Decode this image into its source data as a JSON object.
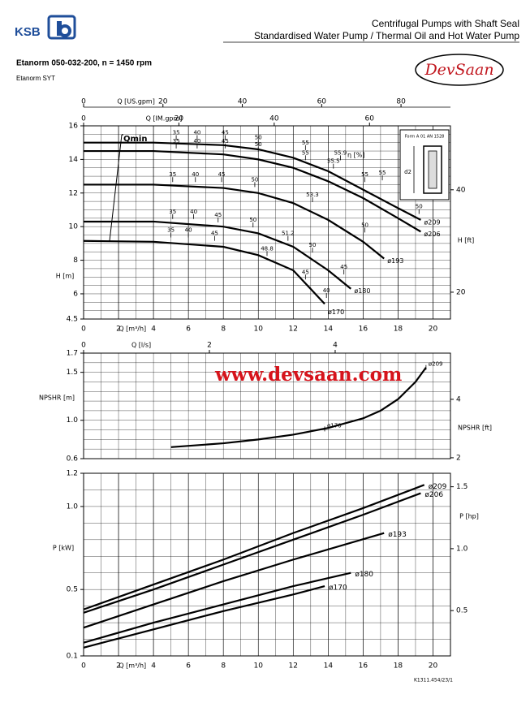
{
  "header": {
    "brand": "KSB",
    "title": "Centrifugal Pumps with Shaft Seal",
    "subtitle": "Standardised Water Pump / Thermal Oil and Hot Water Pump",
    "model": "Etanorm 050-032-200, n = 1450 rpm",
    "series_name": "Etanorm SYT",
    "partner_logo": "DevSaan",
    "watermark": "www.devsaan.com",
    "footer": "K1311.454/23/1"
  },
  "inset": {
    "form": "Form A 01 AN 1528",
    "label": "d2"
  },
  "chart_data": [
    {
      "type": "line",
      "xlabel": "Q [m³/h]",
      "ylabel": "H [m]",
      "xlim": [
        0,
        21
      ],
      "xticks": [
        0,
        2,
        4,
        6,
        8,
        10,
        12,
        14,
        16,
        18,
        20
      ],
      "ylim": [
        4.5,
        16
      ],
      "yticks": [
        4.5,
        6,
        8,
        10,
        12,
        14,
        16
      ],
      "y2label": "H [ft]",
      "y2lim": [
        14.76,
        52.49
      ],
      "y2ticks": [
        20,
        40
      ],
      "top_axes": [
        {
          "label": "Q [US.gpm]",
          "lim": [
            0,
            92.46
          ],
          "ticks": [
            0,
            20,
            40,
            60,
            80
          ]
        },
        {
          "label": "Q [IM.gpm]",
          "lim": [
            0,
            76.99
          ],
          "ticks": [
            0,
            20,
            40,
            60
          ]
        }
      ],
      "grid": true,
      "min_flow_label": "Qmin",
      "efficiency_label": "η [%]",
      "series": [
        {
          "name": "ø209",
          "color": "#000000",
          "x": [
            0,
            4,
            8,
            10,
            12,
            14,
            16,
            18,
            19.3
          ],
          "values": [
            15.0,
            15.0,
            14.85,
            14.6,
            14.1,
            13.3,
            12.2,
            11.1,
            10.4
          ]
        },
        {
          "name": "ø206",
          "color": "#000000",
          "x": [
            0,
            4,
            8,
            10,
            12,
            14,
            16,
            18,
            19.3
          ],
          "values": [
            14.5,
            14.5,
            14.3,
            14.0,
            13.5,
            12.7,
            11.7,
            10.5,
            9.7
          ]
        },
        {
          "name": "ø193",
          "color": "#000000",
          "x": [
            0,
            4,
            8,
            10,
            12,
            14,
            16,
            17.2
          ],
          "values": [
            12.5,
            12.5,
            12.3,
            12.0,
            11.4,
            10.4,
            9.1,
            8.1
          ]
        },
        {
          "name": "ø180",
          "color": "#000000",
          "x": [
            0,
            4,
            8,
            10,
            12,
            14,
            15.3
          ],
          "values": [
            10.3,
            10.3,
            10.0,
            9.6,
            8.8,
            7.4,
            6.3
          ]
        },
        {
          "name": "ø170",
          "color": "#000000",
          "x": [
            0,
            4,
            8,
            10,
            12,
            13.8
          ],
          "values": [
            9.15,
            9.1,
            8.8,
            8.3,
            7.4,
            5.4
          ]
        }
      ],
      "annotations": [
        {
          "text": "35",
          "x": 5.3,
          "y": 15.3
        },
        {
          "text": "40",
          "x": 6.5,
          "y": 15.3
        },
        {
          "text": "45",
          "x": 8.1,
          "y": 15.3
        },
        {
          "text": "50",
          "x": 10.0,
          "y": 15.0
        },
        {
          "text": "55",
          "x": 12.7,
          "y": 14.7
        },
        {
          "text": "55.9",
          "x": 14.7,
          "y": 14.1
        },
        {
          "text": "55",
          "x": 17.1,
          "y": 12.9
        },
        {
          "text": "50",
          "x": 19.2,
          "y": 10.9
        },
        {
          "text": "35",
          "x": 5.3,
          "y": 14.8
        },
        {
          "text": "40",
          "x": 6.5,
          "y": 14.8
        },
        {
          "text": "45",
          "x": 8.1,
          "y": 14.8
        },
        {
          "text": "50",
          "x": 10.0,
          "y": 14.6
        },
        {
          "text": "55",
          "x": 12.7,
          "y": 14.1
        },
        {
          "text": "55.5",
          "x": 14.3,
          "y": 13.6
        },
        {
          "text": "55",
          "x": 16.1,
          "y": 12.8
        },
        {
          "text": "35",
          "x": 5.1,
          "y": 12.8
        },
        {
          "text": "40",
          "x": 6.4,
          "y": 12.8
        },
        {
          "text": "45",
          "x": 7.9,
          "y": 12.8
        },
        {
          "text": "50",
          "x": 9.8,
          "y": 12.5
        },
        {
          "text": "53.3",
          "x": 13.1,
          "y": 11.6
        },
        {
          "text": "50",
          "x": 16.1,
          "y": 9.8
        },
        {
          "text": "35",
          "x": 5.1,
          "y": 10.6
        },
        {
          "text": "40",
          "x": 6.3,
          "y": 10.6
        },
        {
          "text": "45",
          "x": 7.7,
          "y": 10.4
        },
        {
          "text": "50",
          "x": 9.7,
          "y": 10.1
        },
        {
          "text": "51.2",
          "x": 11.7,
          "y": 9.3
        },
        {
          "text": "50",
          "x": 13.1,
          "y": 8.6
        },
        {
          "text": "45",
          "x": 14.9,
          "y": 7.3
        },
        {
          "text": "35",
          "x": 5.0,
          "y": 9.5
        },
        {
          "text": "40",
          "x": 6.0,
          "y": 9.5
        },
        {
          "text": "45",
          "x": 7.5,
          "y": 9.3
        },
        {
          "text": "48.8",
          "x": 10.5,
          "y": 8.4
        },
        {
          "text": "45",
          "x": 12.7,
          "y": 7.0
        },
        {
          "text": "40",
          "x": 13.9,
          "y": 5.9
        }
      ]
    },
    {
      "type": "line",
      "ylabel": "NPSHR [m]",
      "xlim": [
        0,
        21
      ],
      "ylim": [
        0.6,
        1.7
      ],
      "yticks": [
        0.6,
        {
          "value": 1,
          "label": "1.0"
        },
        1.5,
        1.7
      ],
      "y2label": "NPSHR [ft]",
      "y2lim": [
        1.97,
        5.58
      ],
      "y2ticks": [
        2,
        4
      ],
      "top_axes": [
        {
          "label": "Q [l/s]",
          "lim": [
            0,
            5.833
          ],
          "ticks": [
            0,
            2,
            4
          ]
        }
      ],
      "grid": true,
      "series": [
        {
          "name": "NPSHR",
          "color": "#000000",
          "x": [
            5,
            8,
            10,
            12,
            14,
            16,
            17,
            18,
            19,
            19.6
          ],
          "values": [
            0.72,
            0.76,
            0.8,
            0.85,
            0.92,
            1.02,
            1.1,
            1.22,
            1.4,
            1.55
          ]
        }
      ],
      "annotations": [
        {
          "text": "ø209",
          "x": 19.6,
          "y": 1.55
        },
        {
          "text": "ø170",
          "x": 13.8,
          "y": 0.91
        }
      ]
    },
    {
      "type": "line",
      "xlabel": "Q [m³/h]",
      "ylabel": "P [kW]",
      "xlim": [
        0,
        21
      ],
      "xticks": [
        0,
        2,
        4,
        6,
        8,
        10,
        12,
        14,
        16,
        18,
        20
      ],
      "ylim": [
        0.1,
        1.2
      ],
      "yticks": [
        0.1,
        0.5,
        {
          "value": 1,
          "label": "1.0"
        },
        1.2
      ],
      "y2label": "P [hp]",
      "y2lim": [
        0.134,
        1.609
      ],
      "y2ticks": [
        0.5,
        {
          "value": 1,
          "label": "1.0"
        },
        1.5
      ],
      "grid": true,
      "series": [
        {
          "name": "ø209",
          "color": "#000000",
          "x": [
            0,
            4,
            8,
            12,
            16,
            19.5
          ],
          "values": [
            0.38,
            0.53,
            0.68,
            0.84,
            0.99,
            1.13
          ]
        },
        {
          "name": "ø206",
          "color": "#000000",
          "x": [
            0,
            4,
            8,
            12,
            16,
            19.3
          ],
          "values": [
            0.36,
            0.5,
            0.65,
            0.8,
            0.95,
            1.08
          ]
        },
        {
          "name": "ø193",
          "color": "#000000",
          "x": [
            0,
            4,
            8,
            12,
            17.2
          ],
          "values": [
            0.27,
            0.41,
            0.55,
            0.68,
            0.84
          ]
        },
        {
          "name": "ø180",
          "color": "#000000",
          "x": [
            0,
            4,
            8,
            12,
            15.3
          ],
          "values": [
            0.18,
            0.3,
            0.41,
            0.52,
            0.6
          ]
        },
        {
          "name": "ø170",
          "color": "#000000",
          "x": [
            0,
            4,
            8,
            12,
            13.8
          ],
          "values": [
            0.15,
            0.26,
            0.37,
            0.47,
            0.52
          ]
        }
      ]
    }
  ]
}
